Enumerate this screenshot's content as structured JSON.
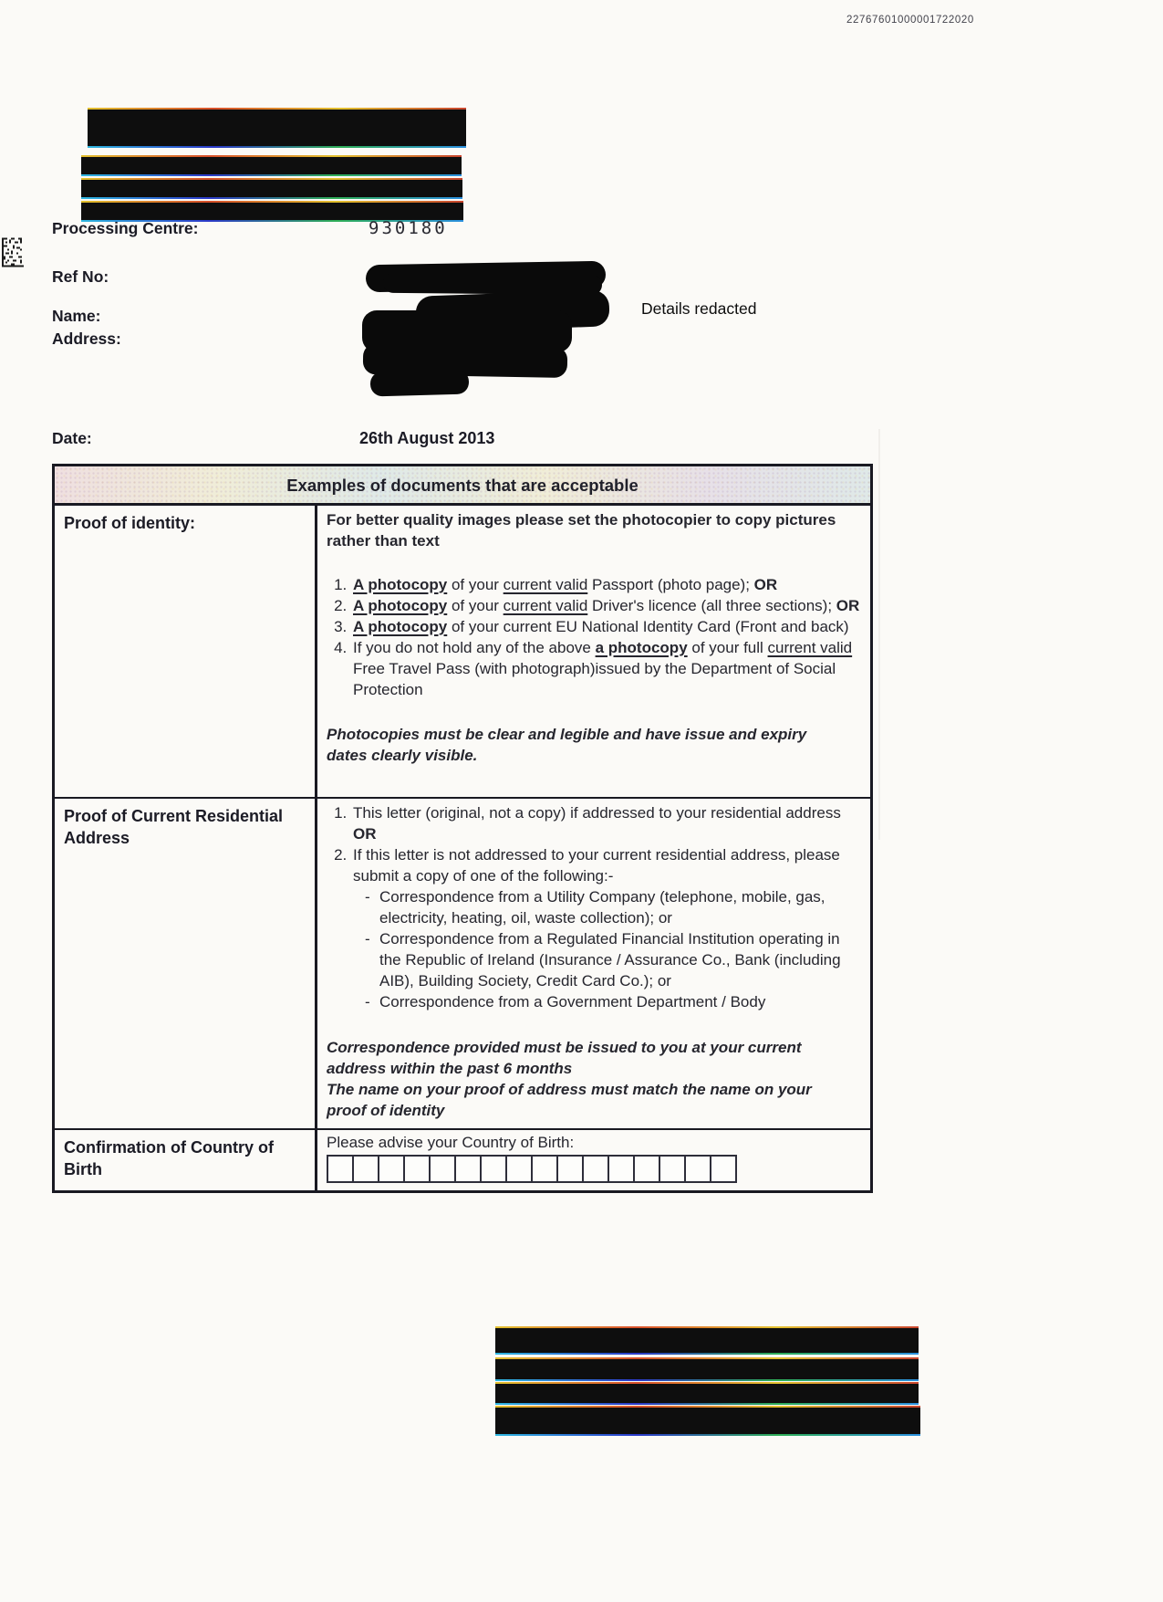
{
  "page": {
    "scan_number": "22767601000001722020",
    "details_note": "Details redacted"
  },
  "meta": {
    "processing_centre": {
      "label": "Processing Centre:",
      "value": "930180"
    },
    "ref_no": {
      "label": "Ref No:"
    },
    "name": {
      "label": "Name:"
    },
    "address": {
      "label": "Address:"
    },
    "date": {
      "label": "Date:",
      "value": "26th August 2013"
    }
  },
  "table": {
    "title": "Examples of documents that are acceptable",
    "proof_of_identity": {
      "heading": "Proof of identity:",
      "intro": "For better quality images please set the photocopier to copy pictures rather than text",
      "items": [
        {
          "segments": [
            {
              "t": "A photocopy",
              "b": true,
              "u": true
            },
            {
              "t": " of your "
            },
            {
              "t": "current valid",
              "u": true
            },
            {
              "t": " Passport (photo page); "
            },
            {
              "t": "OR",
              "b": true
            }
          ]
        },
        {
          "segments": [
            {
              "t": "A photocopy",
              "b": true,
              "u": true
            },
            {
              "t": " of your "
            },
            {
              "t": "current valid",
              "u": true
            },
            {
              "t": " Driver's licence (all three sections); "
            },
            {
              "t": "OR",
              "b": true
            }
          ]
        },
        {
          "segments": [
            {
              "t": "A photocopy",
              "b": true,
              "u": true
            },
            {
              "t": " of your current EU National Identity Card (Front and back)"
            }
          ]
        },
        {
          "segments": [
            {
              "t": "If you do not hold any of the above "
            },
            {
              "t": "a photocopy",
              "b": true,
              "u": true
            },
            {
              "t": " of your full "
            },
            {
              "t": "current valid",
              "u": true
            },
            {
              "t": " Free Travel Pass (with photograph)issued by the Department of Social Protection"
            }
          ]
        }
      ],
      "note": "Photocopies must be clear and legible and have issue and expiry dates clearly visible."
    },
    "proof_of_address": {
      "heading": "Proof of Current Residential Address",
      "items": [
        {
          "segments": [
            {
              "t": "This letter (original, not a copy) if addressed to your residential address  "
            },
            {
              "t": "OR",
              "b": true
            }
          ]
        },
        {
          "segments": [
            {
              "t": "If this letter is not addressed to your current residential address, please submit a copy of one of the following:-"
            }
          ],
          "subitems": [
            "Correspondence from a Utility Company (telephone, mobile, gas, electricity, heating, oil, waste collection); or",
            "Correspondence from a Regulated Financial Institution operating in the Republic of Ireland (Insurance / Assurance Co., Bank (including AIB), Building Society, Credit Card Co.); or",
            "Correspondence from a Government Department / Body"
          ]
        }
      ],
      "notes": [
        "Correspondence provided must be issued to you at your current address within the past 6 months",
        "The name on your proof of address must match the name on your proof of identity"
      ]
    },
    "country_of_birth": {
      "heading": "Confirmation of Country of Birth",
      "prompt": "Please advise your Country of Birth:",
      "cells": 16
    }
  },
  "colors": {
    "ink": "#26262e",
    "heading-ink": "#1b1b25",
    "redaction": "#0e0e0e",
    "paper": "#fbfaf7",
    "table-border": "#191922",
    "header-band": "#eceae4"
  }
}
